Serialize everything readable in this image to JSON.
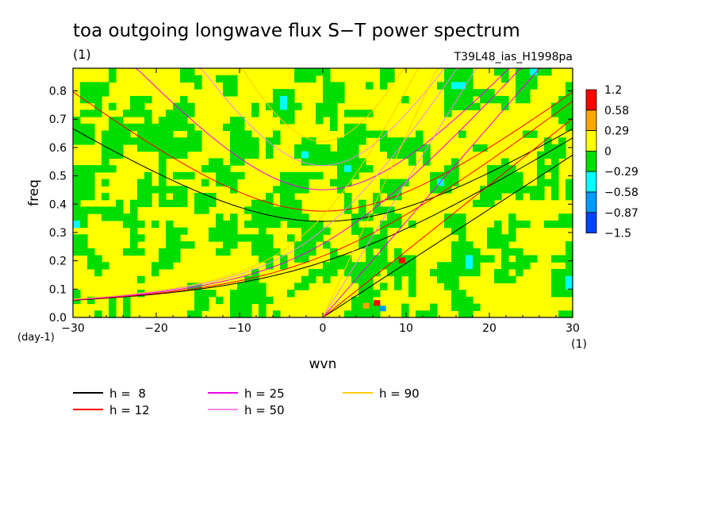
{
  "chart_data": {
    "type": "heatmap",
    "title": "toa outgoing longwave flux S−T power spectrum",
    "title_unit": "(1)",
    "subtitle": "T39L48_ias_H1998pa",
    "xlabel": "wvn",
    "ylabel": "freq",
    "x_unit": "(1)",
    "y_unit": "(day-1)",
    "xlim": [
      -30,
      30
    ],
    "ylim": [
      0,
      0.88
    ],
    "x_ticks": [
      -30,
      -20,
      -10,
      0,
      10,
      20,
      30
    ],
    "y_ticks": [
      0.0,
      0.1,
      0.2,
      0.3,
      0.4,
      0.5,
      0.6,
      0.7,
      0.8
    ],
    "x_tick_labels": [
      "−30",
      "−20",
      "−10",
      "0",
      "10",
      "20",
      "30"
    ],
    "y_tick_labels": [
      "0.0",
      "0.1",
      "0.2",
      "0.3",
      "0.4",
      "0.5",
      "0.6",
      "0.7",
      "0.8"
    ],
    "colorbar": {
      "levels": [
        "1.2",
        "0.58",
        "0.29",
        "0",
        "−0.29",
        "−0.58",
        "−0.87",
        "−1.5"
      ],
      "colors": [
        "#ff0000",
        "#ffa500",
        "#ffff00",
        "#00dd00",
        "#00ffff",
        "#0099ff",
        "#0044ff"
      ]
    },
    "dispersion_curves": [
      {
        "h": 8,
        "color": "#000000"
      },
      {
        "h": 12,
        "color": "#ff0000"
      },
      {
        "h": 25,
        "color": "#ee00ee"
      },
      {
        "h": 50,
        "color": "#ee88ee"
      },
      {
        "h": 90,
        "color": "#ffcc00"
      }
    ]
  },
  "legend": [
    {
      "label": "h =  8",
      "color": "#000000"
    },
    {
      "label": "h = 12",
      "color": "#ff0000"
    },
    {
      "label": "h = 25",
      "color": "#ee00ee"
    },
    {
      "label": "h = 50",
      "color": "#ee88ee"
    },
    {
      "label": "h = 90",
      "color": "#ffcc00"
    }
  ]
}
